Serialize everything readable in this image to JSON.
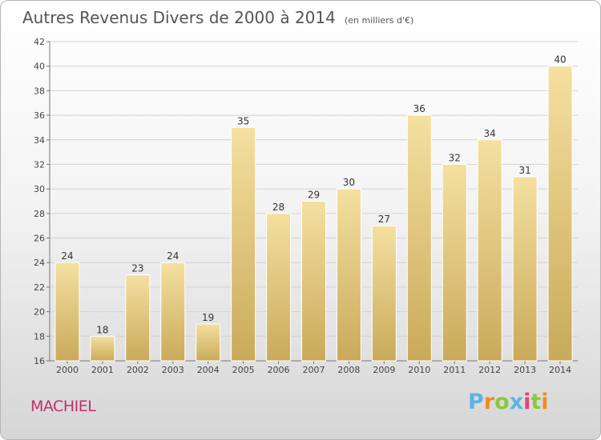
{
  "header": {
    "title": "Autres Revenus Divers de 2000 à 2014",
    "unit": "(en milliers d'€)"
  },
  "footer": {
    "commune": "MACHIEL",
    "logo": "Proxiti"
  },
  "colors": {
    "bar_light": "#f5e0a0",
    "bar_dark": "#c9aa5a",
    "title": "#555555",
    "commune": "#c0306a",
    "logo_letters": [
      "#5bb4e5",
      "#f08c1e",
      "#8cc83c",
      "#5bb4e5",
      "#e8427a",
      "#8cc83c",
      "#f08c1e"
    ]
  },
  "chart_data": {
    "type": "bar",
    "title": "Autres Revenus Divers de 2000 à 2014",
    "subtitle": "(en milliers d'€)",
    "categories": [
      "2000",
      "2001",
      "2002",
      "2003",
      "2004",
      "2005",
      "2006",
      "2007",
      "2008",
      "2009",
      "2010",
      "2011",
      "2012",
      "2013",
      "2014"
    ],
    "values": [
      24,
      18,
      23,
      24,
      19,
      35,
      28,
      29,
      30,
      27,
      36,
      32,
      34,
      31,
      40
    ],
    "ylim": [
      16,
      42
    ],
    "yticks": [
      16,
      18,
      20,
      22,
      24,
      26,
      28,
      30,
      32,
      34,
      36,
      38,
      40,
      42
    ],
    "grid": true,
    "data_labels": true
  }
}
